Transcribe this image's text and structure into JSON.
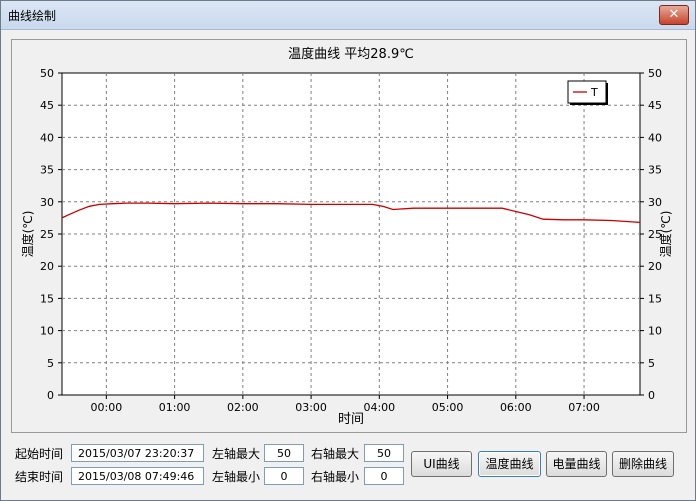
{
  "window": {
    "title": "曲线绘制",
    "close_glyph": "✕"
  },
  "chart_data": {
    "type": "line",
    "title": "温度曲线 平均28.9℃",
    "xlabel": "时间",
    "ylabel_left": "温度(℃)",
    "ylabel_right": "温度(℃)",
    "y_ticks": [
      "0",
      "5",
      "10",
      "15",
      "20",
      "25",
      "30",
      "35",
      "40",
      "45",
      "50"
    ],
    "ylim": [
      0,
      50
    ],
    "x_ticks": [
      "00:00",
      "01:00",
      "02:00",
      "03:00",
      "04:00",
      "05:00",
      "06:00",
      "07:00"
    ],
    "xlim_hours": [
      -0.65,
      7.82
    ],
    "grid": true,
    "legend": {
      "position": "top-right",
      "entries": [
        "T"
      ]
    },
    "series": [
      {
        "name": "T",
        "color": "#cc0000",
        "x": [
          -0.65,
          -0.55,
          -0.4,
          -0.25,
          -0.1,
          0.1,
          0.3,
          0.6,
          1.0,
          1.5,
          2.0,
          2.5,
          3.0,
          3.5,
          3.9,
          4.05,
          4.2,
          4.5,
          5.0,
          5.5,
          5.8,
          6.0,
          6.2,
          6.4,
          6.7,
          7.0,
          7.4,
          7.82
        ],
        "y": [
          27.5,
          28.0,
          28.7,
          29.3,
          29.6,
          29.7,
          29.8,
          29.8,
          29.7,
          29.8,
          29.7,
          29.7,
          29.6,
          29.6,
          29.6,
          29.3,
          28.8,
          29.0,
          29.0,
          29.0,
          29.0,
          28.5,
          28.0,
          27.3,
          27.2,
          27.2,
          27.1,
          26.8
        ]
      }
    ]
  },
  "controls": {
    "start_label": "起始时间",
    "start_value": "2015/03/07 23:20:37",
    "end_label": "结束时间",
    "end_value": "2015/03/08 07:49:46",
    "left_max_label": "左轴最大",
    "left_max_value": "50",
    "left_min_label": "左轴最小",
    "left_min_value": "0",
    "right_max_label": "右轴最大",
    "right_max_value": "50",
    "right_min_label": "右轴最小",
    "right_min_value": "0",
    "buttons": [
      "UI曲线",
      "温度曲线",
      "电量曲线",
      "删除曲线"
    ],
    "active_button": "温度曲线"
  }
}
